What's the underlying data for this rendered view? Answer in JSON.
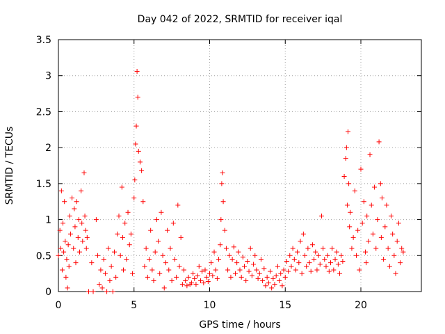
{
  "chart_data": {
    "type": "scatter",
    "title": "Day 042 of 2022, SRMTID for receiver iqal",
    "xlabel": "GPS time / hours",
    "ylabel": "SRMTID / TECUs",
    "xlim": [
      0,
      24
    ],
    "ylim": [
      0,
      3.5
    ],
    "xticks": [
      0,
      5,
      10,
      15,
      20
    ],
    "xtick_labels": [
      "0",
      "5",
      "10",
      "15",
      "20"
    ],
    "yticks": [
      0,
      0.5,
      1,
      1.5,
      2,
      2.5,
      3,
      3.5
    ],
    "ytick_labels": [
      "0",
      "0.5",
      "1",
      "1.5",
      "2",
      "2.5",
      "3",
      "3.5"
    ],
    "grid": true,
    "marker": "+",
    "series": [
      {
        "name": "SRMTID",
        "color": "#ff0000",
        "x": [
          0.0,
          0.1,
          0.15,
          0.2,
          0.25,
          0.3,
          0.35,
          0.4,
          0.45,
          0.5,
          0.55,
          0.6,
          0.65,
          0.7,
          0.75,
          0.8,
          0.9,
          1.0,
          1.05,
          1.1,
          1.15,
          1.2,
          1.3,
          1.35,
          1.4,
          1.5,
          1.55,
          1.6,
          1.7,
          1.75,
          1.8,
          1.85,
          1.9,
          2.0,
          2.2,
          2.3,
          2.5,
          2.6,
          2.7,
          2.8,
          2.9,
          3.0,
          3.1,
          3.2,
          3.3,
          3.4,
          3.5,
          3.6,
          3.7,
          3.8,
          3.9,
          4.0,
          4.1,
          4.2,
          4.25,
          4.3,
          4.4,
          4.5,
          4.6,
          4.7,
          4.8,
          4.9,
          5.0,
          5.05,
          5.1,
          5.15,
          5.2,
          5.25,
          5.3,
          5.4,
          5.5,
          5.6,
          5.7,
          5.8,
          5.9,
          6.0,
          6.1,
          6.2,
          6.3,
          6.4,
          6.5,
          6.6,
          6.7,
          6.8,
          6.9,
          7.0,
          7.1,
          7.2,
          7.3,
          7.4,
          7.5,
          7.6,
          7.7,
          7.8,
          7.9,
          8.0,
          8.1,
          8.2,
          8.3,
          8.4,
          8.5,
          8.6,
          8.7,
          8.8,
          8.9,
          9.0,
          9.1,
          9.2,
          9.3,
          9.4,
          9.5,
          9.6,
          9.7,
          9.8,
          9.9,
          10.0,
          10.1,
          10.2,
          10.3,
          10.4,
          10.5,
          10.6,
          10.7,
          10.75,
          10.8,
          10.85,
          10.9,
          11.0,
          11.1,
          11.2,
          11.3,
          11.4,
          11.5,
          11.6,
          11.7,
          11.8,
          11.9,
          12.0,
          12.1,
          12.2,
          12.3,
          12.4,
          12.5,
          12.6,
          12.7,
          12.8,
          12.9,
          13.0,
          13.1,
          13.2,
          13.3,
          13.4,
          13.5,
          13.6,
          13.7,
          13.8,
          13.9,
          14.0,
          14.1,
          14.2,
          14.3,
          14.4,
          14.5,
          14.6,
          14.7,
          14.8,
          14.9,
          15.0,
          15.1,
          15.2,
          15.3,
          15.4,
          15.5,
          15.6,
          15.7,
          15.8,
          15.9,
          16.0,
          16.1,
          16.2,
          16.3,
          16.4,
          16.5,
          16.6,
          16.7,
          16.8,
          16.9,
          17.0,
          17.1,
          17.2,
          17.3,
          17.4,
          17.5,
          17.6,
          17.7,
          17.8,
          17.9,
          18.0,
          18.1,
          18.2,
          18.3,
          18.4,
          18.5,
          18.6,
          18.7,
          18.8,
          18.9,
          19.0,
          19.05,
          19.1,
          19.15,
          19.2,
          19.25,
          19.3,
          19.4,
          19.5,
          19.6,
          19.7,
          19.8,
          19.9,
          20.0,
          20.1,
          20.2,
          20.3,
          20.35,
          20.4,
          20.5,
          20.6,
          20.7,
          20.8,
          20.9,
          21.0,
          21.1,
          21.2,
          21.3,
          21.35,
          21.4,
          21.5,
          21.6,
          21.7,
          21.8,
          21.9,
          22.0,
          22.1,
          22.2,
          22.3,
          22.4,
          22.5,
          22.6,
          22.7,
          22.8
        ],
        "y": [
          0.5,
          0.85,
          0.6,
          1.4,
          0.3,
          0.95,
          0.55,
          1.25,
          0.7,
          0.2,
          0.45,
          0.05,
          0.65,
          0.35,
          1.05,
          0.8,
          1.3,
          0.6,
          1.15,
          0.9,
          0.4,
          1.25,
          0.75,
          1.0,
          0.55,
          1.4,
          0.95,
          0.7,
          1.65,
          1.05,
          0.85,
          0.6,
          0.75,
          0.0,
          0.4,
          0.0,
          1.0,
          0.5,
          0.1,
          0.3,
          0.05,
          0.45,
          0.25,
          0.0,
          0.6,
          0.15,
          0.35,
          0.0,
          0.55,
          0.2,
          0.8,
          1.05,
          0.5,
          1.45,
          0.75,
          0.3,
          0.95,
          0.45,
          1.1,
          0.65,
          0.8,
          0.25,
          1.3,
          1.55,
          2.05,
          2.3,
          3.06,
          2.7,
          1.95,
          1.8,
          1.68,
          1.25,
          0.35,
          0.6,
          0.2,
          0.45,
          0.85,
          0.3,
          0.15,
          0.55,
          1.0,
          0.7,
          0.25,
          1.1,
          0.5,
          0.05,
          0.4,
          0.85,
          0.3,
          0.6,
          0.15,
          0.95,
          0.45,
          0.2,
          1.2,
          0.35,
          0.75,
          0.1,
          0.3,
          0.15,
          0.08,
          0.2,
          0.1,
          0.12,
          0.25,
          0.18,
          0.1,
          0.22,
          0.35,
          0.15,
          0.28,
          0.12,
          0.3,
          0.2,
          0.14,
          0.25,
          0.4,
          0.22,
          0.55,
          0.3,
          0.18,
          0.45,
          0.65,
          1.0,
          1.5,
          1.65,
          1.25,
          0.85,
          0.6,
          0.3,
          0.5,
          0.2,
          0.45,
          0.62,
          0.25,
          0.4,
          0.55,
          0.3,
          0.2,
          0.48,
          0.35,
          0.15,
          0.42,
          0.28,
          0.6,
          0.22,
          0.38,
          0.5,
          0.3,
          0.18,
          0.25,
          0.45,
          0.15,
          0.32,
          0.08,
          0.2,
          0.12,
          0.28,
          0.05,
          0.18,
          0.1,
          0.22,
          0.35,
          0.15,
          0.25,
          0.08,
          0.3,
          0.2,
          0.42,
          0.28,
          0.5,
          0.35,
          0.6,
          0.45,
          0.3,
          0.55,
          0.4,
          0.7,
          0.25,
          0.8,
          0.5,
          0.35,
          0.6,
          0.4,
          0.28,
          0.65,
          0.45,
          0.55,
          0.3,
          0.5,
          0.38,
          1.05,
          0.6,
          0.45,
          0.35,
          0.5,
          0.28,
          0.4,
          0.6,
          0.3,
          0.45,
          0.55,
          0.38,
          0.25,
          0.5,
          0.42,
          1.6,
          1.85,
          2.0,
          1.2,
          2.22,
          1.5,
          0.9,
          1.1,
          0.6,
          0.75,
          1.4,
          0.5,
          0.85,
          0.3,
          1.7,
          0.95,
          1.25,
          0.55,
          0.4,
          1.05,
          0.7,
          1.9,
          1.2,
          0.8,
          1.45,
          0.6,
          1.0,
          2.08,
          1.5,
          0.75,
          1.3,
          0.45,
          0.9,
          1.2,
          0.6,
          0.35,
          1.05,
          0.8,
          0.5,
          0.25,
          0.7,
          0.95,
          0.4,
          0.6,
          0.55
        ]
      }
    ]
  }
}
